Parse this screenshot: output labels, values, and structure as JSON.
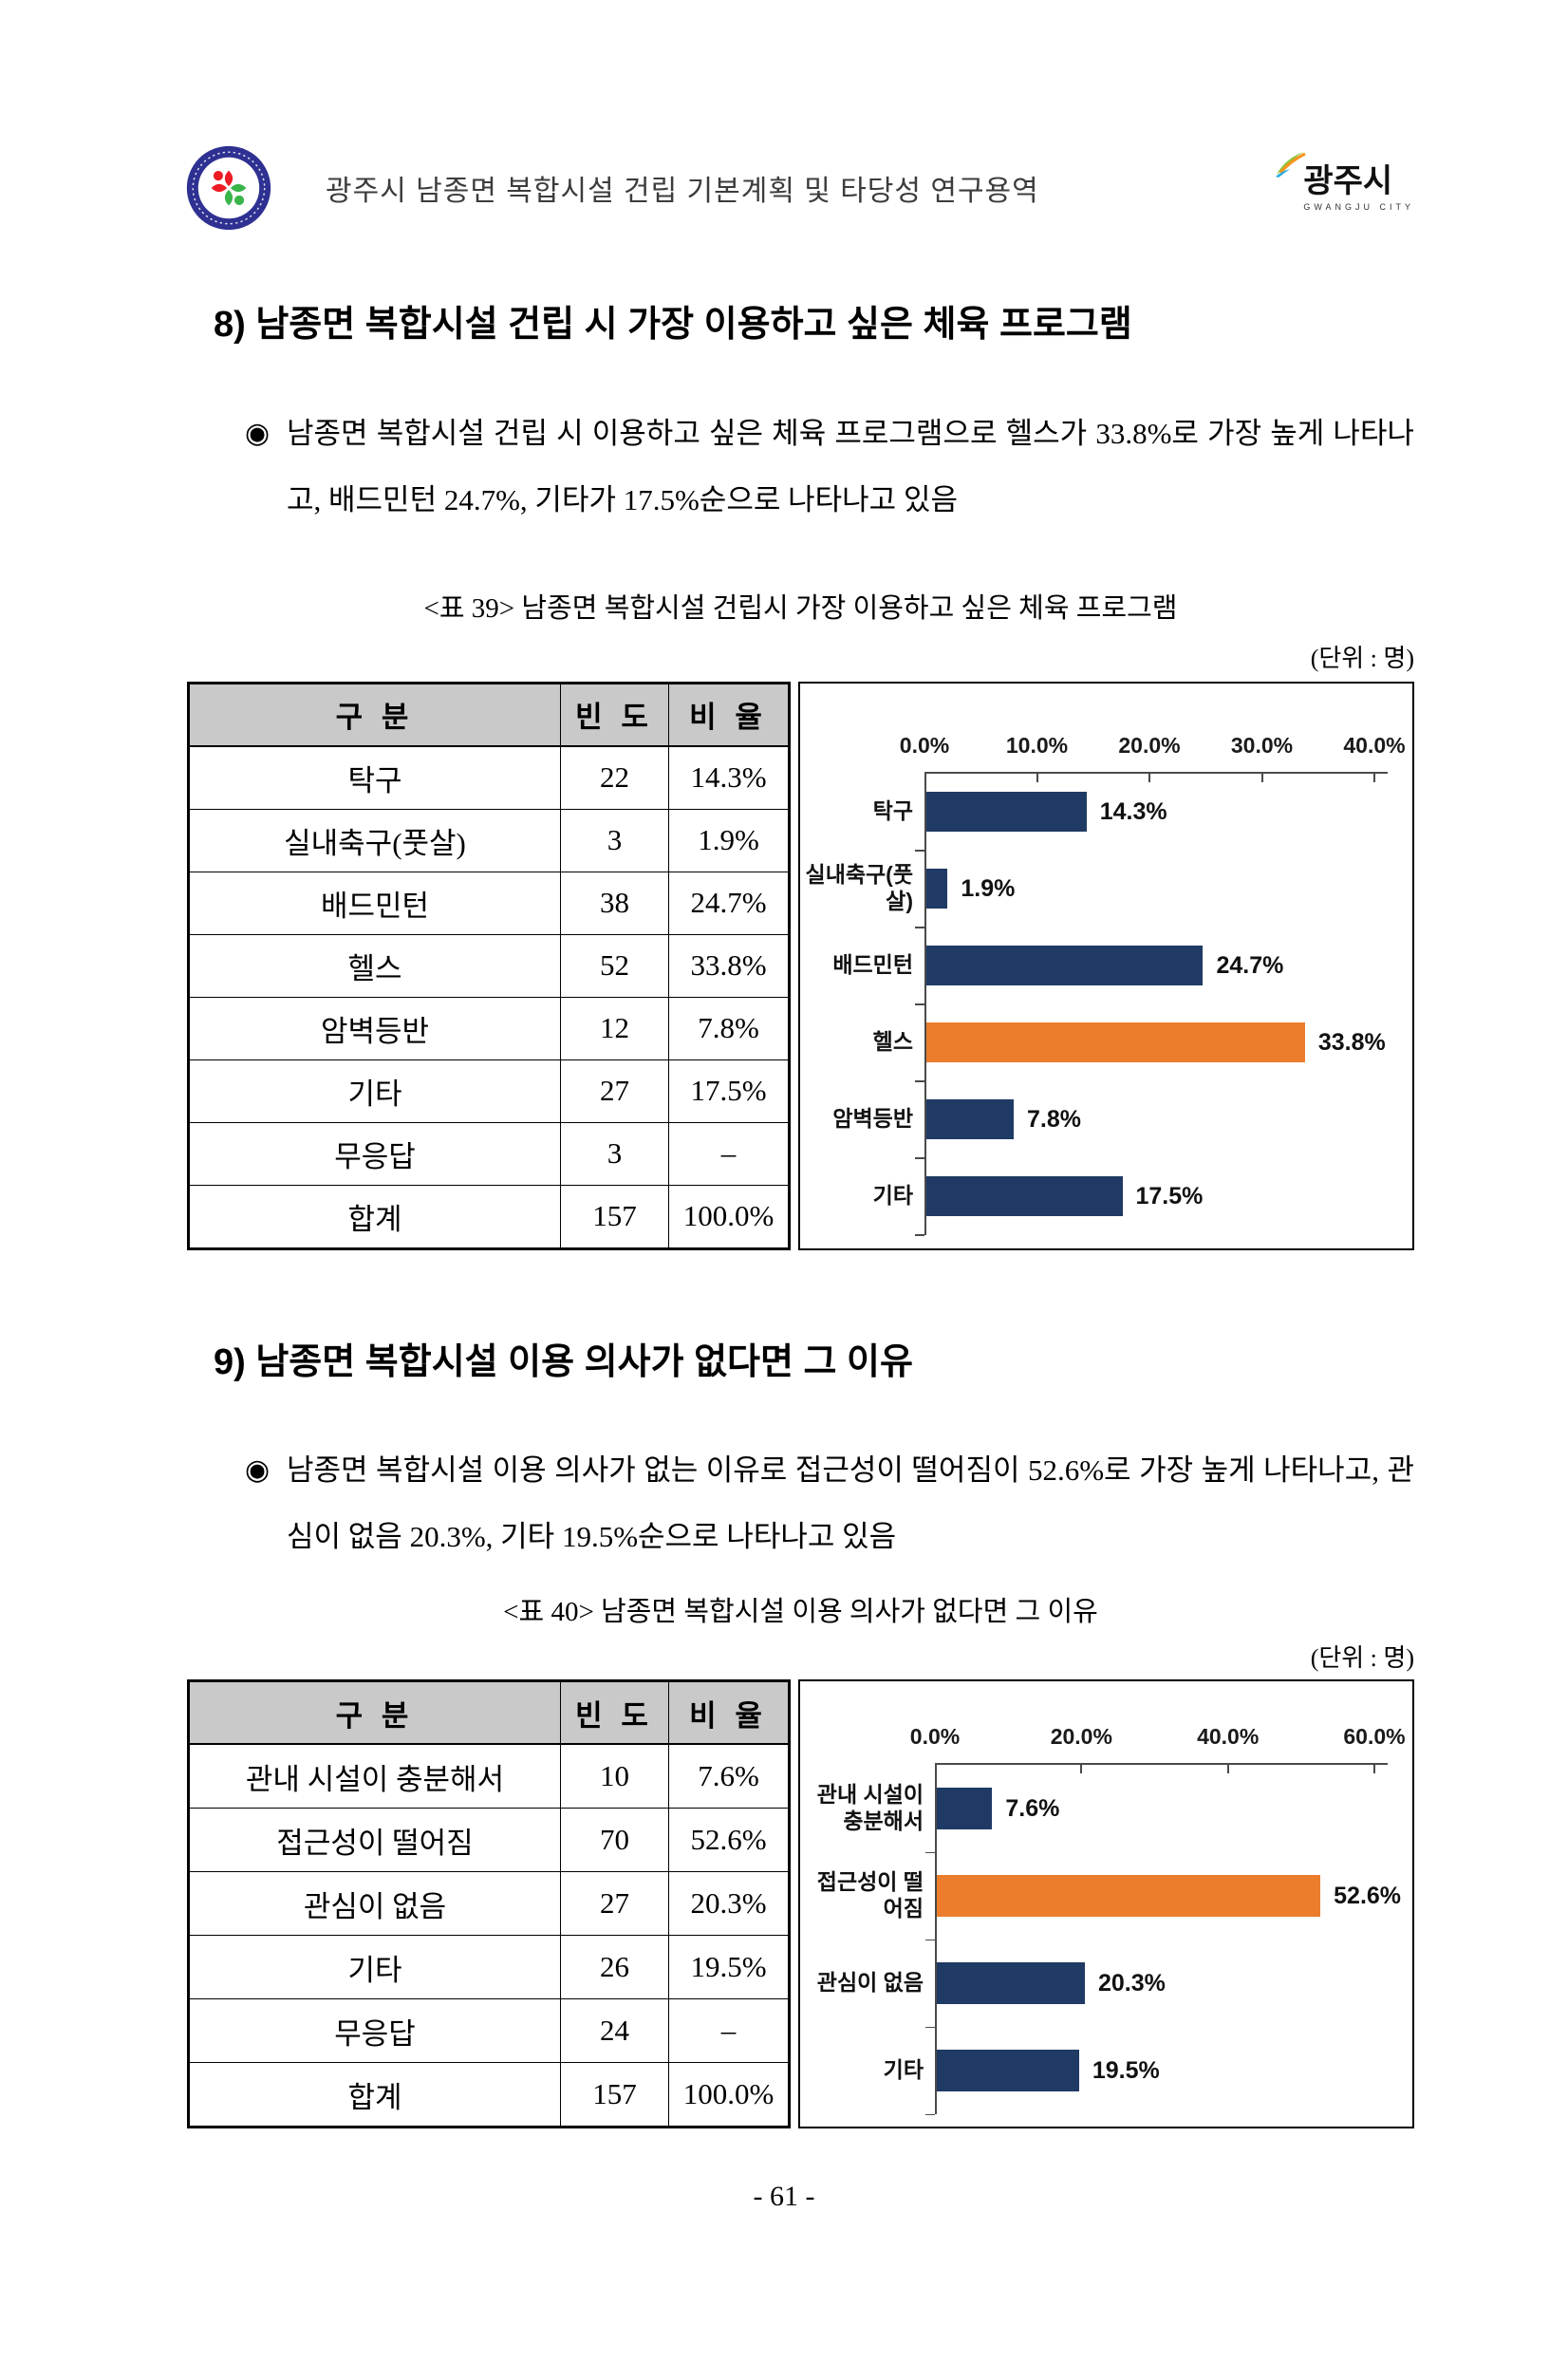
{
  "header": {
    "title": "광주시 남종면 복합시설 건립 기본계획 및 타당성 연구용역",
    "city_logo_text": "광주시",
    "city_logo_subtext": "GWANGJU CITY"
  },
  "bullet_glyph": "◉",
  "section8": {
    "heading": "8) 남종면 복합시설 건립 시 가장 이용하고 싶은 체육 프로그램",
    "bullet": "남종면 복합시설 건립 시 이용하고 싶은 체육 프로그램으로 헬스가 33.8%로 가장 높게 나타나고, 배드민턴 24.7%, 기타가 17.5%순으로 나타나고 있음",
    "table_caption": "<표 39> 남종면 복합시설 건립시 가장 이용하고 싶은 체육 프로그램",
    "unit_note": "(단위 : 명)"
  },
  "table39": {
    "headers": [
      "구 분",
      "빈 도",
      "비 율"
    ],
    "rows": [
      {
        "label": "탁구",
        "freq": "22",
        "ratio": "14.3%"
      },
      {
        "label": "실내축구(풋살)",
        "freq": "3",
        "ratio": "1.9%"
      },
      {
        "label": "배드민턴",
        "freq": "38",
        "ratio": "24.7%"
      },
      {
        "label": "헬스",
        "freq": "52",
        "ratio": "33.8%"
      },
      {
        "label": "암벽등반",
        "freq": "12",
        "ratio": "7.8%"
      },
      {
        "label": "기타",
        "freq": "27",
        "ratio": "17.5%"
      },
      {
        "label": "무응답",
        "freq": "3",
        "ratio": "–"
      },
      {
        "label": "합계",
        "freq": "157",
        "ratio": "100.0%"
      }
    ]
  },
  "section9": {
    "heading": "9) 남종면 복합시설 이용 의사가 없다면 그 이유",
    "bullet": "남종면 복합시설 이용 의사가 없는 이유로 접근성이 떨어짐이 52.6%로 가장 높게 나타나고, 관심이 없음 20.3%, 기타 19.5%순으로 나타나고 있음",
    "table_caption": "<표 40> 남종면 복합시설 이용 의사가 없다면 그 이유",
    "unit_note": "(단위 : 명)"
  },
  "table40": {
    "headers": [
      "구 분",
      "빈 도",
      "비 율"
    ],
    "rows": [
      {
        "label": "관내 시설이 충분해서",
        "freq": "10",
        "ratio": "7.6%"
      },
      {
        "label": "접근성이 떨어짐",
        "freq": "70",
        "ratio": "52.6%"
      },
      {
        "label": "관심이 없음",
        "freq": "27",
        "ratio": "20.3%"
      },
      {
        "label": "기타",
        "freq": "26",
        "ratio": "19.5%"
      },
      {
        "label": "무응답",
        "freq": "24",
        "ratio": "–"
      },
      {
        "label": "합계",
        "freq": "157",
        "ratio": "100.0%"
      }
    ]
  },
  "chart_data": [
    {
      "type": "bar",
      "orientation": "horizontal",
      "title": "",
      "categories": [
        "탁구",
        "실내축구(풋살)",
        "배드민턴",
        "헬스",
        "암벽등반",
        "기타"
      ],
      "values": [
        14.3,
        1.9,
        24.7,
        33.8,
        7.8,
        17.5
      ],
      "value_labels": [
        "14.3%",
        "1.9%",
        "24.7%",
        "33.8%",
        "7.8%",
        "17.5%"
      ],
      "ticks": [
        "0.0%",
        "10.0%",
        "20.0%",
        "30.0%",
        "40.0%"
      ],
      "xlim": [
        0,
        40
      ],
      "grid": false,
      "legend": "none",
      "bar_colors": [
        "#1f3a64",
        "#1f3a64",
        "#1f3a64",
        "#ec7d2d",
        "#1f3a64",
        "#1f3a64"
      ],
      "base_color": "#1f3a64",
      "highlight_color": "#ec7d2d",
      "highlight_index": 3
    },
    {
      "type": "bar",
      "orientation": "horizontal",
      "title": "",
      "categories": [
        "관내 시설이\n충분해서",
        "접근성이 떨어짐",
        "관심이 없음",
        "기타"
      ],
      "values": [
        7.6,
        52.6,
        20.3,
        19.5
      ],
      "value_labels": [
        "7.6%",
        "52.6%",
        "20.3%",
        "19.5%"
      ],
      "ticks": [
        "0.0%",
        "20.0%",
        "40.0%",
        "60.0%"
      ],
      "xlim": [
        0,
        60
      ],
      "grid": false,
      "legend": "none",
      "bar_colors": [
        "#1f3a64",
        "#ec7d2d",
        "#1f3a64",
        "#1f3a64"
      ],
      "base_color": "#1f3a64",
      "highlight_color": "#ec7d2d",
      "highlight_index": 1
    }
  ],
  "page": {
    "number": "- 61 -"
  }
}
